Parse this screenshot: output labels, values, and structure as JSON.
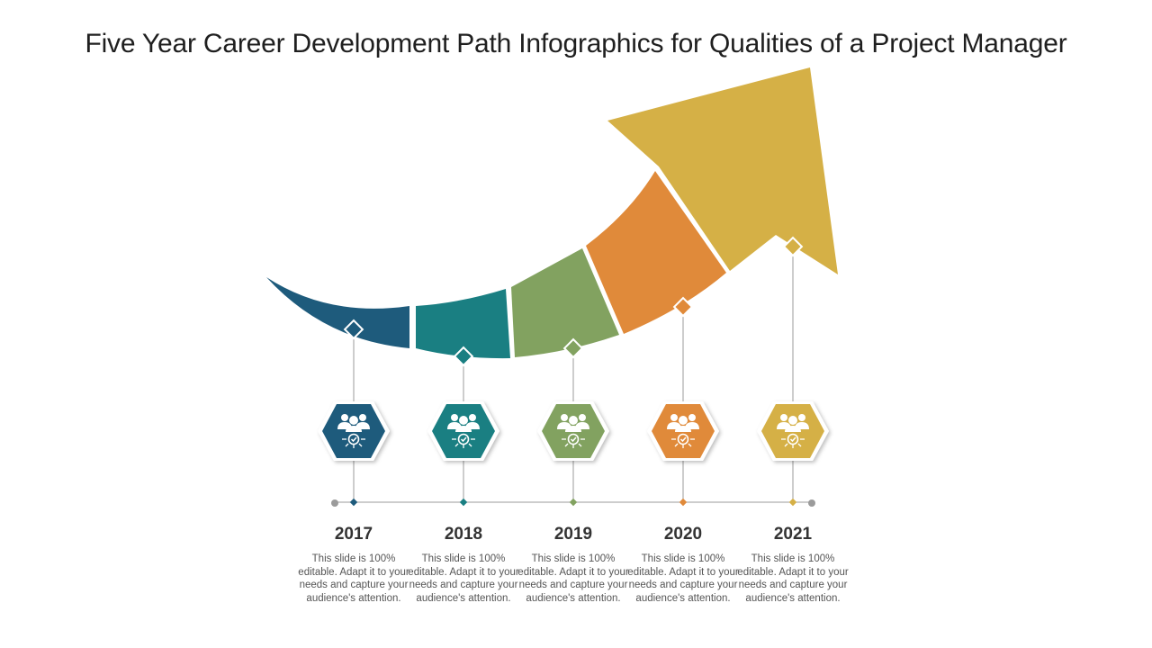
{
  "title": "Five Year Career Development Path Infographics for Qualities of a Project Manager",
  "icon": "team-check-icon",
  "steps": [
    {
      "year": "2017",
      "text": "This slide is 100% editable. Adapt it to your needs and capture your audience's attention.",
      "color": "#1e5b7c"
    },
    {
      "year": "2018",
      "text": "This slide is 100% editable. Adapt it to your needs and capture your audience's attention.",
      "color": "#1a7f82"
    },
    {
      "year": "2019",
      "text": "This slide is 100% editable. Adapt it to your needs and capture your audience's attention.",
      "color": "#82a260"
    },
    {
      "year": "2020",
      "text": "This slide is 100% editable. Adapt it to your needs and capture your audience's attention.",
      "color": "#e08a3a"
    },
    {
      "year": "2021",
      "text": "This slide is 100% editable. Adapt it to your needs and capture your audience's attention.",
      "color": "#d5b046"
    }
  ],
  "timeline_color": "#9b9b9b"
}
